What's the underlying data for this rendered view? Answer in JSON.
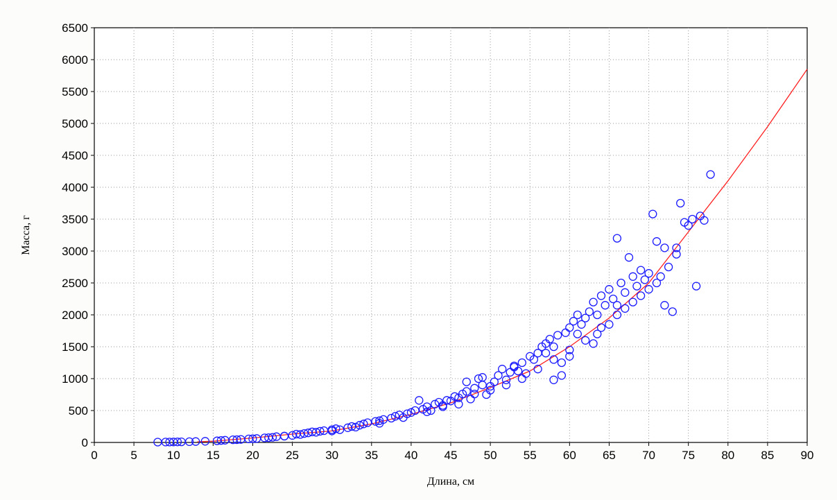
{
  "chart_data": {
    "type": "scatter",
    "title": "",
    "xlabel": "Длина, см",
    "ylabel": "Масса, г",
    "xlim": [
      0,
      90
    ],
    "ylim": [
      0,
      6500
    ],
    "xticks": [
      "0",
      "5",
      "10",
      "15",
      "20",
      "25",
      "30",
      "35",
      "40",
      "45",
      "50",
      "55",
      "60",
      "65",
      "70",
      "75",
      "80",
      "85",
      "90"
    ],
    "yticks": [
      "0",
      "500",
      "1000",
      "1500",
      "2000",
      "2500",
      "3000",
      "3500",
      "4000",
      "4500",
      "5000",
      "5500",
      "6000",
      "6500"
    ],
    "grid": true,
    "legend": "none",
    "colors": {
      "points": "#1a1aff",
      "curve": "#ff2020",
      "grid": "#9a9a9a",
      "background": "#fcfcfa",
      "plot_bg": "#ffffff"
    },
    "series": [
      {
        "kind": "scatter",
        "points": [
          [
            8,
            5
          ],
          [
            9,
            6
          ],
          [
            9.5,
            7
          ],
          [
            10,
            8
          ],
          [
            10.5,
            9
          ],
          [
            11,
            10
          ],
          [
            12.8,
            14
          ],
          [
            15.5,
            25
          ],
          [
            16.5,
            35
          ],
          [
            17.5,
            42
          ],
          [
            18.5,
            48
          ],
          [
            19.5,
            55
          ],
          [
            20.5,
            62
          ],
          [
            21.5,
            72
          ],
          [
            22.5,
            80
          ],
          [
            23,
            90
          ],
          [
            24,
            98
          ],
          [
            25,
            110
          ],
          [
            25.5,
            130
          ],
          [
            26.5,
            140
          ],
          [
            27,
            150
          ],
          [
            27.5,
            165
          ],
          [
            28.5,
            175
          ],
          [
            29,
            185
          ],
          [
            30,
            200
          ],
          [
            30.5,
            215
          ],
          [
            31,
            200
          ],
          [
            32,
            230
          ],
          [
            32.5,
            250
          ],
          [
            33.5,
            270
          ],
          [
            34,
            290
          ],
          [
            34.5,
            310
          ],
          [
            35.5,
            330
          ],
          [
            36,
            340
          ],
          [
            36.5,
            360
          ],
          [
            37.5,
            380
          ],
          [
            38,
            410
          ],
          [
            38.5,
            430
          ],
          [
            39.5,
            450
          ],
          [
            40,
            470
          ],
          [
            40.5,
            500
          ],
          [
            41,
            660
          ],
          [
            41.5,
            520
          ],
          [
            42,
            560
          ],
          [
            42.5,
            500
          ],
          [
            43,
            600
          ],
          [
            43.5,
            630
          ],
          [
            44,
            580
          ],
          [
            44.5,
            660
          ],
          [
            45,
            650
          ],
          [
            45.5,
            720
          ],
          [
            46,
            700
          ],
          [
            46.5,
            760
          ],
          [
            47,
            800
          ],
          [
            47.5,
            680
          ],
          [
            48,
            850
          ],
          [
            48.5,
            1000
          ],
          [
            49,
            900
          ],
          [
            49.5,
            750
          ],
          [
            50,
            880
          ],
          [
            50.5,
            950
          ],
          [
            51,
            1050
          ],
          [
            51.5,
            1150
          ],
          [
            52,
            980
          ],
          [
            52.5,
            1100
          ],
          [
            53,
            1200
          ],
          [
            53.5,
            1120
          ],
          [
            54,
            1250
          ],
          [
            54.5,
            1080
          ],
          [
            55,
            1350
          ],
          [
            55.5,
            1300
          ],
          [
            56,
            1400
          ],
          [
            56.5,
            1500
          ],
          [
            57,
            1550
          ],
          [
            57.5,
            1620
          ],
          [
            58,
            1500
          ],
          [
            58.5,
            1680
          ],
          [
            59,
            1050
          ],
          [
            59.5,
            1720
          ],
          [
            60,
            1800
          ],
          [
            60.5,
            1900
          ],
          [
            61,
            2000
          ],
          [
            61.5,
            1850
          ],
          [
            62,
            1950
          ],
          [
            62.5,
            2050
          ],
          [
            63,
            2200
          ],
          [
            63.5,
            1700
          ],
          [
            64,
            2300
          ],
          [
            64.5,
            2150
          ],
          [
            65,
            2400
          ],
          [
            65.5,
            2250
          ],
          [
            66,
            3200
          ],
          [
            66.5,
            2500
          ],
          [
            67,
            2350
          ],
          [
            67.5,
            2900
          ],
          [
            68,
            2600
          ],
          [
            68.5,
            2450
          ],
          [
            69,
            2700
          ],
          [
            69.5,
            2550
          ],
          [
            70,
            2650
          ],
          [
            70.5,
            3580
          ],
          [
            71,
            3150
          ],
          [
            71.5,
            2600
          ],
          [
            72,
            3050
          ],
          [
            72.5,
            2750
          ],
          [
            73,
            2050
          ],
          [
            73.5,
            3050
          ],
          [
            74,
            3750
          ],
          [
            74.5,
            3450
          ],
          [
            75,
            3400
          ],
          [
            75.5,
            3500
          ],
          [
            76,
            2450
          ],
          [
            76.5,
            3550
          ],
          [
            77,
            3480
          ],
          [
            77.8,
            4200
          ],
          [
            12,
            12
          ],
          [
            14,
            18
          ],
          [
            16,
            30
          ],
          [
            18,
            44
          ],
          [
            20,
            58
          ],
          [
            22,
            75
          ],
          [
            24,
            100
          ],
          [
            26,
            125
          ],
          [
            28,
            160
          ],
          [
            30,
            180
          ],
          [
            33,
            240
          ],
          [
            36,
            300
          ],
          [
            39,
            390
          ],
          [
            42,
            480
          ],
          [
            44,
            560
          ],
          [
            46,
            600
          ],
          [
            48,
            760
          ],
          [
            50,
            820
          ],
          [
            52,
            900
          ],
          [
            54,
            1000
          ],
          [
            56,
            1150
          ],
          [
            58,
            1300
          ],
          [
            60,
            1450
          ],
          [
            62,
            1600
          ],
          [
            64,
            1800
          ],
          [
            66,
            2000
          ],
          [
            68,
            2200
          ],
          [
            70,
            2400
          ],
          [
            72,
            2150
          ],
          [
            73.5,
            2950
          ],
          [
            58,
            980
          ],
          [
            60,
            1350
          ],
          [
            63,
            1550
          ],
          [
            65,
            1850
          ],
          [
            67,
            2100
          ],
          [
            69,
            2300
          ],
          [
            71,
            2500
          ],
          [
            47,
            950
          ],
          [
            49,
            1020
          ],
          [
            53,
            1180
          ],
          [
            57,
            1400
          ],
          [
            59,
            1250
          ],
          [
            61,
            1700
          ],
          [
            63.5,
            2000
          ],
          [
            66,
            2150
          ]
        ]
      },
      {
        "kind": "curve",
        "name": "",
        "x": [
          13,
          15,
          20,
          25,
          30,
          35,
          40,
          45,
          50,
          55,
          60,
          65,
          70,
          75,
          80,
          85,
          90
        ],
        "y": [
          10,
          20,
          70,
          130,
          180,
          290,
          440,
          620,
          860,
          1120,
          1500,
          1950,
          2500,
          3300,
          4100,
          4950,
          5850
        ]
      }
    ]
  }
}
